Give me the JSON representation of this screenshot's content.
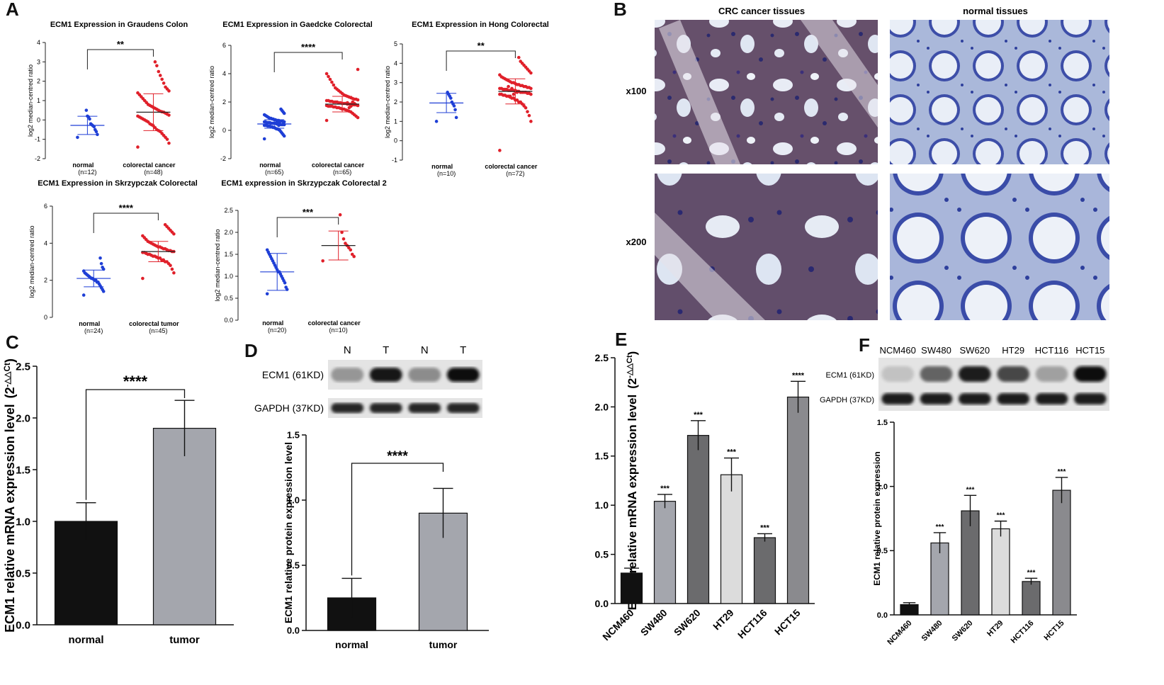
{
  "colors": {
    "blue": "#1f3fd6",
    "red": "#e0202a",
    "black": "#111111",
    "gray": "#a4a6ad",
    "dark_gray": "#6b6b6d",
    "light_gray": "#dcdcdc",
    "mid_gray": "#8a8a8e"
  },
  "panels": {
    "A": "A",
    "B": "B",
    "C": "C",
    "D": "D",
    "E": "E",
    "F": "F"
  },
  "panel_b": {
    "col_titles": [
      "CRC cancer tissues",
      "normal tissues"
    ],
    "row_labels": [
      "x100",
      "x200"
    ]
  },
  "blot_d": {
    "lanes": [
      "N",
      "T",
      "N",
      "T"
    ],
    "rows": [
      "ECM1 (61KD)",
      "GAPDH (37KD)"
    ],
    "ecm1_intensity": [
      0.3,
      0.95,
      0.35,
      1.0
    ],
    "gapdh_intensity": [
      0.85,
      0.85,
      0.85,
      0.85
    ]
  },
  "blot_f": {
    "lanes": [
      "NCM460",
      "SW480",
      "SW620",
      "HT29",
      "HCT116",
      "HCT15"
    ],
    "rows": [
      "ECM1 (61KD)",
      "GAPDH (37KD)"
    ],
    "ecm1_intensity": [
      0.08,
      0.55,
      0.9,
      0.7,
      0.25,
      1.0
    ],
    "gapdh_intensity": [
      0.9,
      0.9,
      0.9,
      0.9,
      0.9,
      0.9
    ]
  },
  "chart_data": [
    {
      "id": "A1",
      "type": "scatter",
      "title": "ECM1 Expression in Graudens Colon",
      "ylabel": "log2 median-centred ratio",
      "ylim": [
        -2,
        4
      ],
      "yticks": [
        -2,
        -1,
        0,
        1,
        2,
        3,
        4
      ],
      "groups": [
        {
          "name": "normal",
          "n": "(n=12)",
          "color": "blue",
          "mean": -0.28,
          "sd": 0.47,
          "points": [
            -0.9,
            -0.75,
            -0.6,
            -0.5,
            -0.35,
            -0.3,
            -0.25,
            -0.2,
            0.05,
            0.15,
            0.2,
            0.5
          ]
        },
        {
          "name": "colorectal cancer",
          "n": "(n=48)",
          "color": "red",
          "mean": 0.4,
          "sd": 0.95,
          "points": [
            -1.4,
            -1.2,
            -1.0,
            -0.9,
            -0.8,
            -0.7,
            -0.6,
            -0.55,
            -0.5,
            -0.4,
            -0.3,
            -0.25,
            -0.2,
            -0.1,
            -0.05,
            0.0,
            0.05,
            0.1,
            0.15,
            0.2,
            0.25,
            0.3,
            0.35,
            0.4,
            0.42,
            0.45,
            0.5,
            0.55,
            0.6,
            0.65,
            0.7,
            0.75,
            0.8,
            0.9,
            1.0,
            1.1,
            1.2,
            1.3,
            1.4,
            1.5,
            1.6,
            1.7,
            1.9,
            2.1,
            2.3,
            2.5,
            2.8,
            3.0
          ]
        }
      ],
      "significance": "**"
    },
    {
      "id": "A2",
      "type": "scatter",
      "title": "ECM1 Expression in Gaedcke Colorectal",
      "ylabel": "log2 median-centred ratio",
      "ylim": [
        -2,
        6
      ],
      "yticks": [
        -2,
        0,
        2,
        4,
        6
      ],
      "groups": [
        {
          "name": "normal",
          "n": "(n=65)",
          "color": "blue",
          "mean": 0.45,
          "sd": 0.3,
          "points": [
            -0.6,
            -0.4,
            -0.3,
            -0.2,
            -0.1,
            0.0,
            0.05,
            0.1,
            0.1,
            0.15,
            0.2,
            0.2,
            0.25,
            0.25,
            0.3,
            0.3,
            0.3,
            0.35,
            0.35,
            0.35,
            0.4,
            0.4,
            0.4,
            0.4,
            0.45,
            0.45,
            0.45,
            0.45,
            0.5,
            0.5,
            0.5,
            0.5,
            0.5,
            0.55,
            0.55,
            0.55,
            0.55,
            0.6,
            0.6,
            0.6,
            0.6,
            0.65,
            0.65,
            0.65,
            0.7,
            0.7,
            0.7,
            0.75,
            0.75,
            0.8,
            0.8,
            0.85,
            0.85,
            0.9,
            0.95,
            1.0,
            1.05,
            1.1,
            1.2,
            1.3,
            1.4,
            1.5,
            0.45,
            0.35,
            0.55
          ]
        },
        {
          "name": "colorectal cancer",
          "n": "(n=65)",
          "color": "red",
          "mean": 1.85,
          "sd": 0.55,
          "points": [
            0.7,
            0.9,
            1.0,
            1.1,
            1.2,
            1.3,
            1.35,
            1.4,
            1.45,
            1.5,
            1.5,
            1.55,
            1.6,
            1.6,
            1.65,
            1.65,
            1.7,
            1.7,
            1.7,
            1.75,
            1.75,
            1.8,
            1.8,
            1.8,
            1.85,
            1.85,
            1.85,
            1.9,
            1.9,
            1.9,
            1.95,
            1.95,
            2.0,
            2.0,
            2.0,
            2.05,
            2.05,
            2.1,
            2.1,
            2.15,
            2.2,
            2.2,
            2.25,
            2.3,
            2.35,
            2.4,
            2.45,
            2.5,
            2.6,
            2.7,
            2.8,
            2.9,
            3.0,
            3.2,
            3.4,
            3.6,
            3.8,
            4.0,
            4.3,
            1.8,
            1.9,
            2.0,
            1.7,
            1.6,
            1.95
          ]
        }
      ],
      "significance": "****"
    },
    {
      "id": "A3",
      "type": "scatter",
      "title": "ECM1 Expression in Hong Colorectal",
      "ylabel": "log2 median-centred ratio",
      "ylim": [
        -1,
        5
      ],
      "yticks": [
        -1,
        0,
        1,
        2,
        3,
        4,
        5
      ],
      "groups": [
        {
          "name": "normal",
          "n": "(n=10)",
          "color": "blue",
          "mean": 1.95,
          "sd": 0.5,
          "points": [
            1.0,
            1.2,
            1.6,
            1.8,
            1.9,
            2.0,
            2.2,
            2.3,
            2.4,
            2.5
          ]
        },
        {
          "name": "colorectal cancer",
          "n": "(n=72)",
          "color": "red",
          "mean": 2.55,
          "sd": 0.65,
          "points": [
            -0.5,
            1.0,
            1.3,
            1.5,
            1.7,
            1.8,
            1.9,
            2.0,
            2.0,
            2.1,
            2.1,
            2.2,
            2.2,
            2.25,
            2.3,
            2.3,
            2.35,
            2.35,
            2.4,
            2.4,
            2.4,
            2.45,
            2.45,
            2.5,
            2.5,
            2.5,
            2.5,
            2.55,
            2.55,
            2.55,
            2.6,
            2.6,
            2.6,
            2.6,
            2.65,
            2.65,
            2.65,
            2.7,
            2.7,
            2.7,
            2.75,
            2.75,
            2.8,
            2.8,
            2.85,
            2.85,
            2.9,
            2.9,
            2.95,
            3.0,
            3.0,
            3.05,
            3.1,
            3.15,
            3.2,
            3.25,
            3.3,
            3.4,
            3.5,
            3.6,
            3.7,
            3.8,
            3.9,
            4.0,
            4.1,
            4.3,
            2.5,
            2.6,
            2.4,
            2.7,
            2.3,
            2.8
          ]
        }
      ],
      "significance": "**"
    },
    {
      "id": "A4",
      "type": "scatter",
      "title": "ECM1 Expression in Skrzypczak Colorectal",
      "ylabel": "log2 median-centred ratio",
      "ylim": [
        0,
        6
      ],
      "yticks": [
        0,
        2,
        4,
        6
      ],
      "groups": [
        {
          "name": "normal",
          "n": "(n=24)",
          "color": "blue",
          "mean": 2.1,
          "sd": 0.45,
          "points": [
            1.2,
            1.4,
            1.5,
            1.6,
            1.7,
            1.8,
            1.9,
            1.9,
            2.0,
            2.0,
            2.05,
            2.1,
            2.1,
            2.15,
            2.2,
            2.25,
            2.3,
            2.35,
            2.4,
            2.5,
            2.6,
            2.7,
            2.9,
            3.2
          ]
        },
        {
          "name": "colorectal tumor",
          "n": "(n=45)",
          "color": "red",
          "mean": 3.55,
          "sd": 0.55,
          "points": [
            2.1,
            2.4,
            2.6,
            2.8,
            2.9,
            3.0,
            3.0,
            3.1,
            3.1,
            3.2,
            3.2,
            3.25,
            3.3,
            3.3,
            3.35,
            3.4,
            3.4,
            3.45,
            3.5,
            3.5,
            3.55,
            3.55,
            3.6,
            3.6,
            3.65,
            3.7,
            3.7,
            3.75,
            3.8,
            3.8,
            3.85,
            3.9,
            3.95,
            4.0,
            4.05,
            4.1,
            4.2,
            4.3,
            4.4,
            4.5,
            4.6,
            4.7,
            4.8,
            4.9,
            5.0
          ]
        }
      ],
      "significance": "****"
    },
    {
      "id": "A5",
      "type": "scatter",
      "title": "ECM1 expression in Skrzypczak Colorectal 2",
      "ylabel": "log2 median-centred ratio",
      "ylim": [
        0.0,
        2.5
      ],
      "yticks": [
        0.0,
        0.5,
        1.0,
        1.5,
        2.0,
        2.5
      ],
      "ytick_labels": [
        "0.0",
        "0.5",
        "1.0",
        "1.5",
        "2.0",
        "2.5"
      ],
      "groups": [
        {
          "name": "normal",
          "n": "(n=20)",
          "color": "blue",
          "mean": 1.1,
          "sd": 0.42,
          "points": [
            0.6,
            0.7,
            0.75,
            0.85,
            0.9,
            0.95,
            1.0,
            1.05,
            1.1,
            1.1,
            1.15,
            1.2,
            1.25,
            1.3,
            1.35,
            1.4,
            1.45,
            1.5,
            1.55,
            1.6
          ]
        },
        {
          "name": "colorectal cancer",
          "n": "(n=10)",
          "color": "red",
          "mean": 1.7,
          "sd": 0.33,
          "points": [
            1.35,
            1.45,
            1.5,
            1.6,
            1.65,
            1.7,
            1.75,
            1.85,
            2.0,
            2.4
          ]
        }
      ],
      "significance": "***"
    },
    {
      "id": "C",
      "type": "bar",
      "categories": [
        "normal",
        "tumor"
      ],
      "values": [
        1.0,
        1.9
      ],
      "errors": [
        0.18,
        0.27
      ],
      "bar_colors": [
        "black",
        "gray"
      ],
      "ylabel": "ECM1 relative mRNA expression level",
      "ylabel_suffix": "(2",
      "ylabel_sup": "-△△Ct",
      "ylabel_close": ")",
      "ylim": [
        0.0,
        2.5
      ],
      "yticks": [
        "0.0",
        "0.5",
        "1.0",
        "1.5",
        "2.0",
        "2.5"
      ],
      "significance": "****"
    },
    {
      "id": "D",
      "type": "bar",
      "categories": [
        "normal",
        "tumor"
      ],
      "values": [
        0.25,
        0.9
      ],
      "errors": [
        0.15,
        0.19
      ],
      "bar_colors": [
        "black",
        "gray"
      ],
      "ylabel": "ECM1 relative protein expression level",
      "ylim": [
        0.0,
        1.5
      ],
      "yticks": [
        "0.0",
        "0.5",
        "1.0",
        "1.5"
      ],
      "significance": "****"
    },
    {
      "id": "E",
      "type": "bar",
      "categories": [
        "NCM460",
        "SW480",
        "SW620",
        "HT29",
        "HCT116",
        "HCT15"
      ],
      "values": [
        0.31,
        1.04,
        1.71,
        1.31,
        0.67,
        2.1
      ],
      "errors": [
        0.05,
        0.07,
        0.15,
        0.17,
        0.04,
        0.16
      ],
      "bar_colors": [
        "black",
        "gray",
        "dark_gray",
        "light_gray",
        "dark_gray",
        "mid_gray"
      ],
      "labels": [
        "",
        "***",
        "***",
        "***",
        "***",
        "****"
      ],
      "ylabel": "ECM1 relative mRNA expression level",
      "ylabel_suffix": "(2",
      "ylabel_sup": "-△△Ct",
      "ylabel_close": ")",
      "ylim": [
        0.0,
        2.5
      ],
      "yticks": [
        "0.0",
        "0.5",
        "1.0",
        "1.5",
        "2.0",
        "2.5"
      ]
    },
    {
      "id": "F",
      "type": "bar",
      "categories": [
        "NCM460",
        "SW480",
        "SW620",
        "HT29",
        "HCT116",
        "HCT15"
      ],
      "values": [
        0.08,
        0.56,
        0.81,
        0.67,
        0.26,
        0.97
      ],
      "errors": [
        0.015,
        0.08,
        0.12,
        0.06,
        0.025,
        0.1
      ],
      "bar_colors": [
        "black",
        "gray",
        "dark_gray",
        "light_gray",
        "dark_gray",
        "mid_gray"
      ],
      "labels": [
        "",
        "***",
        "***",
        "***",
        "***",
        "***"
      ],
      "ylabel": "ECM1 relative protein expression",
      "ylim": [
        0.0,
        1.5
      ],
      "yticks": [
        "0.0",
        "0.5",
        "1.0",
        "1.5"
      ]
    }
  ]
}
